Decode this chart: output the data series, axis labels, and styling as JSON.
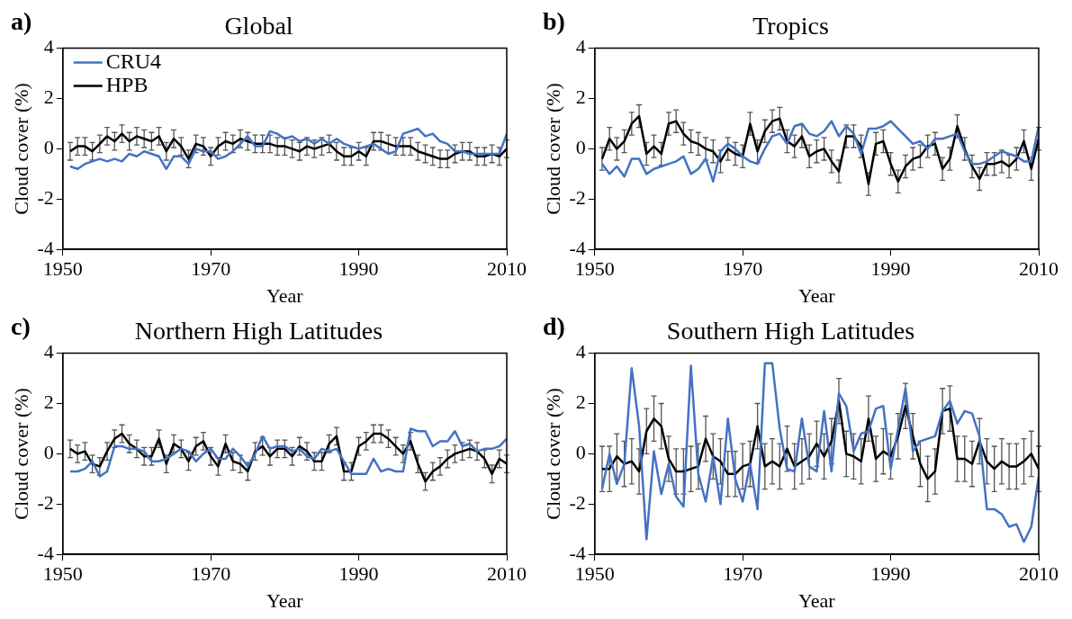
{
  "chart_data": [
    {
      "type": "line",
      "title": "Global",
      "annotations": [
        "a)"
      ],
      "xlabel": "Year",
      "ylabel": "Cloud cover (%)",
      "xlim": [
        1950,
        2010
      ],
      "xticks": [
        1950,
        1970,
        1990,
        2010
      ],
      "ylim": [
        -4,
        4
      ],
      "yticks": [
        -4,
        -2,
        0,
        2,
        4
      ],
      "legend": "top left",
      "x": [
        1951,
        1952,
        1953,
        1954,
        1955,
        1956,
        1957,
        1958,
        1959,
        1960,
        1961,
        1962,
        1963,
        1964,
        1965,
        1966,
        1967,
        1968,
        1969,
        1970,
        1971,
        1972,
        1973,
        1974,
        1975,
        1976,
        1977,
        1978,
        1979,
        1980,
        1981,
        1982,
        1983,
        1984,
        1985,
        1986,
        1987,
        1988,
        1989,
        1990,
        1991,
        1992,
        1993,
        1994,
        1995,
        1996,
        1997,
        1998,
        1999,
        2000,
        2001,
        2002,
        2003,
        2004,
        2005,
        2006,
        2007,
        2008,
        2009,
        2010
      ],
      "series": [
        {
          "name": "CRU4",
          "color": "#4472c4",
          "values": [
            -0.7,
            -0.8,
            -0.6,
            -0.5,
            -0.4,
            -0.5,
            -0.4,
            -0.5,
            -0.2,
            -0.3,
            -0.1,
            -0.2,
            -0.3,
            -0.8,
            -0.3,
            -0.3,
            -0.6,
            0,
            -0.1,
            -0.1,
            -0.4,
            -0.3,
            -0.1,
            0.2,
            0.5,
            0.1,
            0.1,
            0.7,
            0.6,
            0.4,
            0.5,
            0.3,
            0.4,
            0.2,
            0.4,
            0.2,
            0.4,
            0.2,
            0.1,
            0,
            0.1,
            0.2,
            0,
            -0.2,
            -0.1,
            0.6,
            0.7,
            0.8,
            0.5,
            0.6,
            0.3,
            0.2,
            -0.1,
            -0.1,
            -0.2,
            -0.2,
            -0.2,
            -0.2,
            -0.2,
            0.6
          ]
        },
        {
          "name": "HPB",
          "color": "#000000",
          "values": [
            -0.1,
            0.1,
            0.1,
            -0.1,
            0.2,
            0.5,
            0.3,
            0.6,
            0.3,
            0.5,
            0.4,
            0.3,
            0.5,
            -0.1,
            0.4,
            0.1,
            -0.4,
            0.2,
            0.1,
            -0.3,
            0.1,
            0.3,
            0.2,
            0.4,
            0.3,
            0.2,
            0.2,
            0.2,
            0.1,
            0.1,
            0,
            -0.1,
            0.1,
            0,
            0.1,
            0.2,
            -0.1,
            -0.3,
            -0.3,
            -0.1,
            -0.3,
            0.3,
            0.3,
            0.2,
            0.1,
            0.1,
            0.1,
            -0.1,
            -0.2,
            -0.3,
            -0.4,
            -0.4,
            -0.2,
            -0.1,
            -0.1,
            -0.3,
            -0.3,
            -0.2,
            -0.3,
            0
          ],
          "errors": [
            0.35,
            0.35,
            0.35,
            0.35,
            0.35,
            0.35,
            0.35,
            0.35,
            0.35,
            0.35,
            0.35,
            0.35,
            0.35,
            0.35,
            0.35,
            0.35,
            0.35,
            0.35,
            0.35,
            0.35,
            0.35,
            0.35,
            0.35,
            0.35,
            0.35,
            0.35,
            0.35,
            0.35,
            0.35,
            0.35,
            0.35,
            0.35,
            0.35,
            0.35,
            0.35,
            0.35,
            0.35,
            0.35,
            0.35,
            0.35,
            0.35,
            0.35,
            0.35,
            0.35,
            0.35,
            0.35,
            0.35,
            0.35,
            0.35,
            0.35,
            0.35,
            0.35,
            0.35,
            0.35,
            0.35,
            0.35,
            0.35,
            0.35,
            0.35,
            0.35
          ]
        }
      ]
    },
    {
      "type": "line",
      "title": "Tropics",
      "annotations": [
        "b)"
      ],
      "xlabel": "Year",
      "ylabel": "Cloud cover (%)",
      "xlim": [
        1950,
        2010
      ],
      "xticks": [
        1950,
        1970,
        1990,
        2010
      ],
      "ylim": [
        -4,
        4
      ],
      "yticks": [
        -4,
        -2,
        0,
        2,
        4
      ],
      "x": [
        1951,
        1952,
        1953,
        1954,
        1955,
        1956,
        1957,
        1958,
        1959,
        1960,
        1961,
        1962,
        1963,
        1964,
        1965,
        1966,
        1967,
        1968,
        1969,
        1970,
        1971,
        1972,
        1973,
        1974,
        1975,
        1976,
        1977,
        1978,
        1979,
        1980,
        1981,
        1982,
        1983,
        1984,
        1985,
        1986,
        1987,
        1988,
        1989,
        1990,
        1991,
        1992,
        1993,
        1994,
        1995,
        1996,
        1997,
        1998,
        1999,
        2000,
        2001,
        2002,
        2003,
        2004,
        2005,
        2006,
        2007,
        2008,
        2009,
        2010
      ],
      "series": [
        {
          "color": "#4472c4",
          "values": [
            -0.6,
            -1,
            -0.7,
            -1.1,
            -0.4,
            -0.4,
            -1,
            -0.8,
            -0.7,
            -0.6,
            -0.5,
            -0.3,
            -1,
            -0.8,
            -0.4,
            -1.3,
            -0.1,
            0.2,
            0,
            -0.3,
            -0.5,
            -0.6,
            0,
            0.5,
            0.6,
            0.2,
            0.9,
            1,
            0.6,
            0.5,
            0.7,
            1.1,
            0.5,
            0.9,
            0.6,
            -0.2,
            0.8,
            0.8,
            0.9,
            1.1,
            0.8,
            0.5,
            0.2,
            0.3,
            0,
            0.4,
            0.4,
            0.5,
            0.6,
            -0.1,
            -0.6,
            -0.6,
            -0.5,
            -0.3,
            -0.1,
            -0.2,
            -0.3,
            -0.5,
            -0.5,
            0.9
          ]
        },
        {
          "color": "#000000",
          "values": [
            -0.4,
            0.4,
            0,
            0.3,
            1,
            1.3,
            -0.2,
            0.1,
            -0.2,
            1,
            1.1,
            0.6,
            0.3,
            0.2,
            0,
            -0.1,
            -0.5,
            0,
            -0.2,
            -0.3,
            1,
            -0.1,
            0.7,
            1.1,
            1.2,
            0.3,
            0.1,
            0.5,
            -0.3,
            -0.1,
            0,
            -0.5,
            -0.9,
            0.5,
            0.5,
            0.1,
            -1.4,
            0.2,
            0.3,
            -0.6,
            -1.3,
            -0.7,
            -0.4,
            -0.3,
            0.1,
            0.2,
            -0.8,
            -0.4,
            0.9,
            0,
            -0.7,
            -1.2,
            -0.6,
            -0.6,
            -0.5,
            -0.7,
            -0.4,
            0.3,
            -0.8,
            0.4
          ],
          "errors": [
            0.45,
            0.45,
            0.45,
            0.45,
            0.45,
            0.45,
            0.45,
            0.45,
            0.45,
            0.45,
            0.45,
            0.45,
            0.45,
            0.45,
            0.45,
            0.45,
            0.45,
            0.45,
            0.45,
            0.45,
            0.45,
            0.45,
            0.45,
            0.45,
            0.45,
            0.45,
            0.45,
            0.45,
            0.45,
            0.45,
            0.45,
            0.45,
            0.45,
            0.45,
            0.45,
            0.45,
            0.45,
            0.45,
            0.45,
            0.45,
            0.45,
            0.45,
            0.45,
            0.45,
            0.45,
            0.45,
            0.45,
            0.45,
            0.45,
            0.45,
            0.45,
            0.45,
            0.45,
            0.45,
            0.45,
            0.45,
            0.45,
            0.45,
            0.45,
            0.45
          ]
        }
      ]
    },
    {
      "type": "line",
      "title": "Northern High Latitudes",
      "annotations": [
        "c)"
      ],
      "xlabel": "Year",
      "ylabel": "Cloud cover (%)",
      "xlim": [
        1950,
        2010
      ],
      "xticks": [
        1950,
        1970,
        1990,
        2010
      ],
      "ylim": [
        -4,
        4
      ],
      "yticks": [
        -4,
        -2,
        0,
        2,
        4
      ],
      "x": [
        1951,
        1952,
        1953,
        1954,
        1955,
        1956,
        1957,
        1958,
        1959,
        1960,
        1961,
        1962,
        1963,
        1964,
        1965,
        1966,
        1967,
        1968,
        1969,
        1970,
        1971,
        1972,
        1973,
        1974,
        1975,
        1976,
        1977,
        1978,
        1979,
        1980,
        1981,
        1982,
        1983,
        1984,
        1985,
        1986,
        1987,
        1988,
        1989,
        1990,
        1991,
        1992,
        1993,
        1994,
        1995,
        1996,
        1997,
        1998,
        1999,
        2000,
        2001,
        2002,
        2003,
        2004,
        2005,
        2006,
        2007,
        2008,
        2009,
        2010
      ],
      "series": [
        {
          "color": "#4472c4",
          "values": [
            -0.7,
            -0.7,
            -0.6,
            -0.3,
            -0.9,
            -0.7,
            0.3,
            0.3,
            0.2,
            0.2,
            0.1,
            -0.3,
            -0.3,
            -0.2,
            0,
            0.2,
            0.1,
            -0.3,
            0,
            0.2,
            -0.2,
            -0.2,
            0.2,
            -0.1,
            -0.5,
            0,
            0.7,
            0.2,
            0.3,
            0.3,
            0.1,
            0.2,
            -0.1,
            -0.2,
            0.2,
            0.1,
            0.2,
            -0.3,
            -0.8,
            -0.8,
            -0.8,
            -0.2,
            -0.7,
            -0.6,
            -0.7,
            -0.7,
            1,
            0.9,
            0.9,
            0.3,
            0.5,
            0.5,
            0.9,
            0.3,
            0.4,
            0.1,
            0.2,
            0.2,
            0.3,
            0.6
          ]
        },
        {
          "color": "#000000",
          "values": [
            0.2,
            0,
            0.1,
            -0.4,
            -0.5,
            0.1,
            0.6,
            0.8,
            0.4,
            0.2,
            -0.1,
            -0.1,
            0.6,
            -0.4,
            0.4,
            0.2,
            -0.3,
            0.3,
            0.5,
            -0.1,
            -0.5,
            0.4,
            -0.3,
            -0.4,
            -0.7,
            0.1,
            0.3,
            -0.1,
            0.2,
            0.2,
            -0.1,
            0.3,
            0.1,
            -0.3,
            -0.3,
            0.4,
            0.7,
            -0.7,
            -0.7,
            0.3,
            0.5,
            0.8,
            0.8,
            0.6,
            0.3,
            0,
            0.5,
            -0.4,
            -1.1,
            -0.7,
            -0.5,
            -0.2,
            0,
            0.1,
            0.2,
            0.1,
            -0.2,
            -0.8,
            -0.2,
            -0.4
          ],
          "errors": [
            0.35,
            0.35,
            0.35,
            0.35,
            0.35,
            0.35,
            0.35,
            0.35,
            0.35,
            0.35,
            0.35,
            0.35,
            0.35,
            0.35,
            0.35,
            0.35,
            0.35,
            0.35,
            0.35,
            0.35,
            0.35,
            0.35,
            0.35,
            0.35,
            0.35,
            0.35,
            0.35,
            0.35,
            0.35,
            0.35,
            0.35,
            0.35,
            0.35,
            0.35,
            0.35,
            0.35,
            0.35,
            0.35,
            0.35,
            0.35,
            0.35,
            0.35,
            0.35,
            0.35,
            0.35,
            0.35,
            0.35,
            0.35,
            0.35,
            0.35,
            0.35,
            0.35,
            0.35,
            0.35,
            0.35,
            0.35,
            0.35,
            0.35,
            0.35,
            0.35
          ]
        }
      ]
    },
    {
      "type": "line",
      "title": "Southern High Latitudes",
      "annotations": [
        "d)"
      ],
      "xlabel": "Year",
      "ylabel": "Cloud cover (%)",
      "xlim": [
        1950,
        2010
      ],
      "xticks": [
        1950,
        1970,
        1990,
        2010
      ],
      "ylim": [
        -4,
        4
      ],
      "yticks": [
        -4,
        -2,
        0,
        2,
        4
      ],
      "x": [
        1951,
        1952,
        1953,
        1954,
        1955,
        1956,
        1957,
        1958,
        1959,
        1960,
        1961,
        1962,
        1963,
        1964,
        1965,
        1966,
        1967,
        1968,
        1969,
        1970,
        1971,
        1972,
        1973,
        1974,
        1975,
        1976,
        1977,
        1978,
        1979,
        1980,
        1981,
        1982,
        1983,
        1984,
        1985,
        1986,
        1987,
        1988,
        1989,
        1990,
        1991,
        1992,
        1993,
        1994,
        1995,
        1996,
        1997,
        1998,
        1999,
        2000,
        2001,
        2002,
        2003,
        2004,
        2005,
        2006,
        2007,
        2008,
        2009,
        2010
      ],
      "series": [
        {
          "color": "#4472c4",
          "values": [
            -1.4,
            0,
            -1.2,
            -0.4,
            3.4,
            1.1,
            -3.4,
            0.1,
            -1.6,
            -0.4,
            -1.7,
            -2.1,
            3.5,
            -0.8,
            -1.9,
            -0.1,
            -2,
            1.4,
            -1,
            -1.9,
            -0.4,
            -2.2,
            3.6,
            3.6,
            1,
            -0.6,
            -0.7,
            1.4,
            -0.5,
            -0.7,
            1.7,
            -0.7,
            2.4,
            1.9,
            0.1,
            0.8,
            0.9,
            1.8,
            1.9,
            -0.6,
            1,
            2.6,
            0.1,
            0.5,
            0.6,
            0.7,
            1.7,
            2.1,
            1.2,
            1.7,
            1.6,
            0.7,
            -2.2,
            -2.2,
            -2.4,
            -2.9,
            -2.8,
            -3.5,
            -2.9,
            -0.9
          ]
        },
        {
          "color": "#000000",
          "values": [
            -0.6,
            -0.6,
            -0.1,
            -0.4,
            -0.3,
            -0.7,
            0.9,
            1.4,
            1.1,
            -0.2,
            -0.7,
            -0.7,
            -0.6,
            -0.5,
            0.6,
            -0.1,
            -0.3,
            -0.8,
            -0.8,
            -0.5,
            -0.4,
            1.1,
            -0.5,
            -0.3,
            -0.5,
            0.2,
            -0.5,
            -0.3,
            -0.1,
            0.4,
            -0.1,
            0.5,
            2.1,
            0,
            -0.1,
            -0.3,
            1.4,
            -0.2,
            0.1,
            -0.1,
            0.7,
            1.9,
            0.7,
            -0.4,
            -1,
            -0.7,
            1.7,
            1.8,
            -0.2,
            -0.2,
            -0.4,
            0.5,
            -0.3,
            -0.6,
            -0.3,
            -0.5,
            -0.5,
            -0.3,
            0,
            -0.6
          ],
          "errors": [
            0.9,
            0.9,
            0.9,
            0.9,
            0.9,
            0.9,
            0.9,
            0.9,
            0.9,
            0.9,
            0.9,
            0.9,
            0.9,
            0.9,
            0.9,
            0.9,
            0.9,
            0.9,
            0.9,
            0.9,
            0.9,
            0.9,
            0.9,
            0.9,
            0.9,
            0.9,
            0.9,
            0.9,
            0.9,
            0.9,
            0.9,
            0.9,
            0.9,
            0.9,
            0.9,
            0.9,
            0.9,
            0.9,
            0.9,
            0.9,
            0.9,
            0.9,
            0.9,
            0.9,
            0.9,
            0.9,
            0.9,
            0.9,
            0.9,
            0.9,
            0.9,
            0.9,
            0.9,
            0.9,
            0.9,
            0.9,
            0.9,
            0.9,
            0.9,
            0.9
          ]
        }
      ]
    }
  ]
}
